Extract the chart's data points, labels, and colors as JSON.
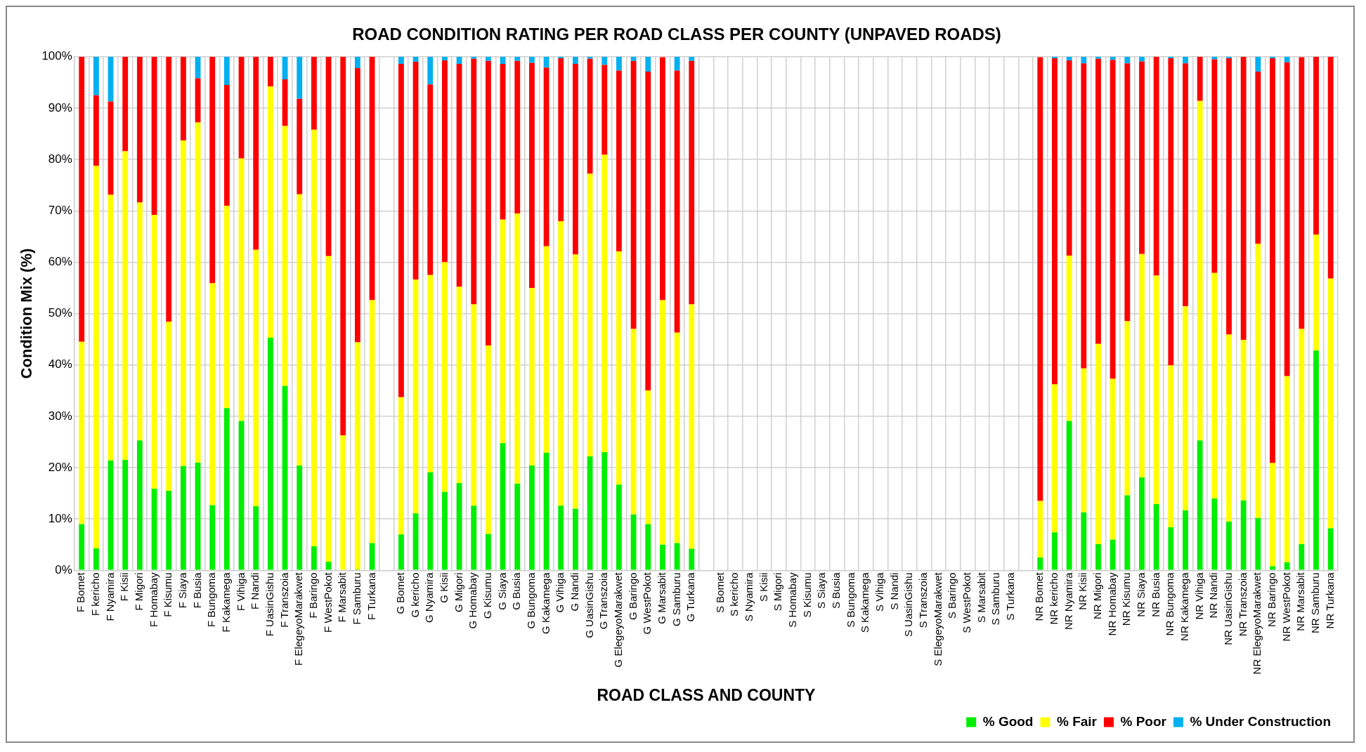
{
  "chart_data": {
    "type": "bar",
    "stacked": true,
    "title": "ROAD CONDITION RATING PER ROAD CLASS PER COUNTY (UNPAVED ROADS)",
    "xlabel": "ROAD CLASS AND COUNTY",
    "ylabel": "Condition Mix (%)",
    "categories": [
      "F Bomet",
      "F kericho",
      "F Nyamira",
      "F Kisii",
      "F Migori",
      "F Homabay",
      "F Kisumu",
      "F Siaya",
      "F Busia",
      "F Bungoma",
      "F Kakamega",
      "F Vihiga",
      "F Nandi",
      "F UasinGishu",
      "F Transzoia",
      "F ElegeyoMarakwet",
      "F Baringo",
      "F WestPokot",
      "F Marsabit",
      "F Samburu",
      "F Turkana",
      null,
      "G Bomet",
      "G kericho",
      "G Nyamira",
      "G Kisii",
      "G Migori",
      "G Homabay",
      "G Kisumu",
      "G Siaya",
      "G Busia",
      "G Bungoma",
      "G Kakamega",
      "G Vihiga",
      "G Nandi",
      "G UasinGishu",
      "G Transzoia",
      "G ElegeyoMarakwet",
      "G Baringo",
      "G WestPokot",
      "G Marsabit",
      "G Samburu",
      "G Turkana",
      null,
      "S Bomet",
      "S kericho",
      "S Nyamira",
      "S Kisii",
      "S Migori",
      "S Homabay",
      "S Kisumu",
      "S Siaya",
      "S Busia",
      "S Bungoma",
      "S Kakamega",
      "S Vihiga",
      "S Nandi",
      "S UasinGishu",
      "S Transzoia",
      "S ElegeyoMarakwet",
      "S Baringo",
      "S WestPokot",
      "S Marsabit",
      "S Samburu",
      "S Turkana",
      null,
      "NR Bomet",
      "NR kericho",
      "NR Nyamira",
      "NR Kisii",
      "NR Migori",
      "NR Homabay",
      "NR Kisumu",
      "NR Siaya",
      "NR Busia",
      "NR Bungoma",
      "NR Kakamega",
      "NR Vihiga",
      "NR Nandi",
      "NR UasinGishu",
      "NR Transzoia",
      "NR ElegeyoMarakwet",
      "NR Baringo",
      "NR WestPokot",
      "NR Marsabit",
      "NR Samburu",
      "NR Turkana"
    ],
    "series": [
      {
        "name": "% Good",
        "color": "#00ee00",
        "values": [
          9,
          4.3,
          21.4,
          21.5,
          25.3,
          15.9,
          15.5,
          20.3,
          21,
          12.7,
          31.6,
          29.1,
          12.5,
          45.3,
          35.9,
          20.4,
          4.7,
          1.7,
          0,
          0.2,
          5.3,
          null,
          7,
          11.1,
          19.1,
          15.3,
          17,
          12.6,
          7.1,
          24.8,
          16.9,
          20.4,
          22.9,
          12.6,
          12,
          22.2,
          23,
          16.7,
          10.9,
          9,
          5,
          5.3,
          4.2,
          null,
          null,
          null,
          null,
          null,
          null,
          null,
          null,
          null,
          null,
          null,
          null,
          null,
          null,
          null,
          null,
          null,
          null,
          null,
          null,
          null,
          null,
          null,
          2.5,
          7.4,
          29.1,
          11.3,
          5.1,
          6,
          14.6,
          18.1,
          12.9,
          8.4,
          11.7,
          25.3,
          14,
          9.5,
          13.6,
          10.2,
          0.8,
          1.6,
          5.1,
          42.8,
          8.2
        ]
      },
      {
        "name": "% Fair",
        "color": "#ffff00",
        "values": [
          35.5,
          74.5,
          51.7,
          60.1,
          46.3,
          53.3,
          32.9,
          63.4,
          66.2,
          43.2,
          39.4,
          51.1,
          49.9,
          48.9,
          50.6,
          52.8,
          81.1,
          59.5,
          26.3,
          44.2,
          47.3,
          null,
          26.7,
          45.5,
          38.4,
          44.7,
          38.2,
          39.2,
          36.7,
          43.5,
          52.6,
          34.6,
          40.2,
          55.4,
          49.5,
          55,
          57.9,
          45.4,
          36.1,
          26,
          47.6,
          41,
          47.6,
          null,
          null,
          null,
          null,
          null,
          null,
          null,
          null,
          null,
          null,
          null,
          null,
          null,
          null,
          null,
          null,
          null,
          null,
          null,
          null,
          null,
          null,
          null,
          11,
          28.8,
          32.2,
          28,
          39,
          31.3,
          33.9,
          43.5,
          44.5,
          31.5,
          39.7,
          66.1,
          43.9,
          36.4,
          31.3,
          53.4,
          20.1,
          36.2,
          41.9,
          22.6,
          48.6
        ]
      },
      {
        "name": "% Poor",
        "color": "#ff0000",
        "values": [
          55.5,
          13.7,
          18.2,
          18.4,
          28.4,
          30.8,
          51.6,
          16.3,
          8.6,
          44.1,
          23.5,
          19.8,
          37.6,
          5.8,
          9.1,
          18.6,
          14.2,
          38.8,
          73.7,
          53.4,
          47.4,
          null,
          64.9,
          42.4,
          37.1,
          39.3,
          43.4,
          47.8,
          55.4,
          30.3,
          29.7,
          43.8,
          34.8,
          31.7,
          37.1,
          22.4,
          17.5,
          35.2,
          52.2,
          62.1,
          47.3,
          51,
          47.4,
          null,
          null,
          null,
          null,
          null,
          null,
          null,
          null,
          null,
          null,
          null,
          null,
          null,
          null,
          null,
          null,
          null,
          null,
          null,
          null,
          null,
          null,
          null,
          86.4,
          63.5,
          38,
          59.4,
          55.5,
          62.1,
          50.2,
          37.5,
          42.6,
          59.8,
          47.3,
          8.6,
          41.6,
          53.8,
          55.1,
          33.5,
          78.8,
          61.1,
          52.9,
          34.6,
          43.2
        ]
      },
      {
        "name": "% Under Construction",
        "color": "#00b0f0",
        "values": [
          0,
          7.5,
          8.7,
          0,
          0,
          0,
          0,
          0,
          4.2,
          0,
          5.5,
          0,
          0,
          0,
          4.4,
          8.2,
          0,
          0,
          0,
          2.2,
          0,
          null,
          1.4,
          1,
          5.4,
          0.7,
          1.4,
          0.4,
          0.8,
          1.4,
          0.8,
          1.2,
          2.1,
          0.3,
          1.4,
          0.4,
          1.6,
          2.7,
          0.8,
          2.9,
          null,
          2.7,
          0.8,
          null,
          null,
          null,
          null,
          null,
          null,
          null,
          null,
          null,
          null,
          null,
          null,
          null,
          null,
          null,
          null,
          null,
          null,
          null,
          null,
          null,
          null,
          null,
          null,
          0.3,
          0.7,
          1.3,
          0.4,
          0.6,
          1.3,
          0.9,
          0,
          0.3,
          1.3,
          0,
          0.5,
          0.3,
          0,
          2.9,
          0.3,
          1.1,
          null,
          0,
          0
        ]
      }
    ],
    "ylim": [
      0,
      100
    ],
    "yticks": [
      {
        "value": 0,
        "label": "0%"
      },
      {
        "value": 10,
        "label": "10%"
      },
      {
        "value": 20,
        "label": "20%"
      },
      {
        "value": 30,
        "label": "30%"
      },
      {
        "value": 40,
        "label": "40%"
      },
      {
        "value": 50,
        "label": "50%"
      },
      {
        "value": 60,
        "label": "60%"
      },
      {
        "value": 70,
        "label": "70%"
      },
      {
        "value": 80,
        "label": "80%"
      },
      {
        "value": 90,
        "label": "90%"
      },
      {
        "value": 100,
        "label": "100%"
      }
    ],
    "grid": true,
    "legend": "bottom right"
  }
}
